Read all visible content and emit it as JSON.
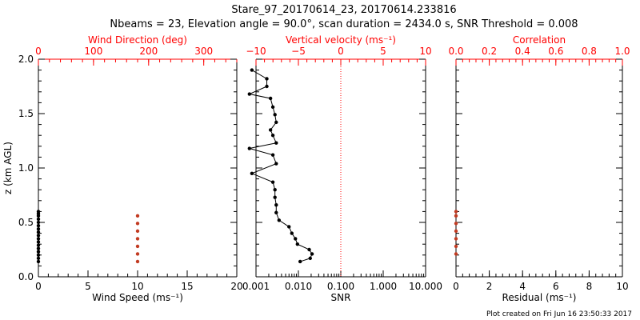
{
  "header": {
    "title_line1": "Stare_97_20170614_23, 20170614.233816",
    "title_line2": "Nbeams = 23, Elevation angle = 90.0°, scan duration = 2434.0 s, SNR Threshold = 0.008"
  },
  "footer": {
    "plot_created": "Plot created on Fri Jun 16 23:50:33 2017"
  },
  "colors": {
    "axis": "#000000",
    "top_axis": "#ff0000",
    "direction_points": "#c23b22",
    "zero_line": "#ff0000"
  },
  "chart_data": [
    {
      "id": "panel1",
      "type": "scatter",
      "ylabel": "z (km AGL)",
      "ylim": [
        0.0,
        2.0
      ],
      "yticks": [
        "0.0",
        "0.5",
        "1.0",
        "1.5",
        "2.0"
      ],
      "xlabel_bottom": "Wind Speed (ms⁻¹)",
      "xlim_bottom": [
        0,
        20
      ],
      "xticks_bottom": [
        "0",
        "5",
        "10",
        "15",
        "20"
      ],
      "xlabel_top": "Wind Direction (deg)",
      "xlim_top": [
        0,
        360
      ],
      "xticks_top": [
        "0",
        "100",
        "200",
        "300"
      ],
      "series": [
        {
          "name": "Wind Speed",
          "axis": "bottom",
          "color": "#000000",
          "x": [
            0,
            0,
            0,
            0,
            0,
            0,
            0,
            0,
            0,
            0,
            0,
            0,
            0,
            0,
            0,
            0,
            0
          ],
          "z": [
            0.14,
            0.17,
            0.2,
            0.23,
            0.26,
            0.29,
            0.32,
            0.35,
            0.38,
            0.41,
            0.44,
            0.47,
            0.5,
            0.53,
            0.56,
            0.58,
            0.6
          ]
        },
        {
          "name": "Wind Direction",
          "axis": "top",
          "color": "#c23b22",
          "x": [
            180,
            180,
            180,
            180,
            180,
            180,
            180
          ],
          "z": [
            0.14,
            0.21,
            0.28,
            0.35,
            0.42,
            0.49,
            0.56
          ]
        }
      ]
    },
    {
      "id": "panel2",
      "type": "line",
      "ylim": [
        0.0,
        2.0
      ],
      "xlabel_bottom": "SNR",
      "xscale_bottom": "log",
      "xlim_bottom": [
        0.001,
        10
      ],
      "xticks_bottom": [
        "0.001",
        "0.010",
        "0.100",
        "1.000",
        "10.000"
      ],
      "xlabel_top": "Vertical velocity (ms⁻¹)",
      "xlim_top": [
        -10,
        10
      ],
      "xticks_top": [
        "−10",
        "−5",
        "0",
        "5",
        "10"
      ],
      "series": [
        {
          "name": "SNR",
          "axis": "bottom",
          "color": "#000000",
          "x": [
            0.011,
            0.019,
            0.021,
            0.018,
            0.0095,
            0.0085,
            0.007,
            0.006,
            0.0035,
            0.003,
            0.003,
            0.0028,
            0.0028,
            0.0025,
            0.0008,
            0.003,
            0.0025,
            0.0007,
            0.003,
            0.0025,
            0.0022,
            0.003,
            0.0028,
            0.0025,
            0.0022,
            0.0007,
            0.0018,
            0.0018,
            0.0008
          ],
          "z": [
            0.14,
            0.17,
            0.21,
            0.25,
            0.3,
            0.35,
            0.4,
            0.46,
            0.52,
            0.59,
            0.66,
            0.73,
            0.8,
            0.87,
            0.95,
            1.04,
            1.12,
            1.18,
            1.23,
            1.3,
            1.35,
            1.42,
            1.49,
            1.56,
            1.64,
            1.68,
            1.75,
            1.82,
            1.9
          ]
        }
      ]
    },
    {
      "id": "panel3",
      "type": "scatter",
      "ylim": [
        0.0,
        2.0
      ],
      "xlabel_bottom": "Residual (ms⁻¹)",
      "xlim_bottom": [
        0,
        10
      ],
      "xticks_bottom": [
        "0",
        "2",
        "4",
        "6",
        "8",
        "10"
      ],
      "xlabel_top": "Correlation",
      "xlim_top": [
        0.0,
        1.0
      ],
      "xticks_top": [
        "0.0",
        "0.2",
        "0.4",
        "0.6",
        "0.8",
        "1.0"
      ],
      "series": [
        {
          "name": "Residual",
          "axis": "bottom",
          "color": "#c23b22",
          "x": [
            0,
            0,
            0,
            0,
            0,
            0,
            0
          ],
          "z": [
            0.21,
            0.28,
            0.35,
            0.42,
            0.49,
            0.56,
            0.6
          ]
        }
      ]
    }
  ]
}
